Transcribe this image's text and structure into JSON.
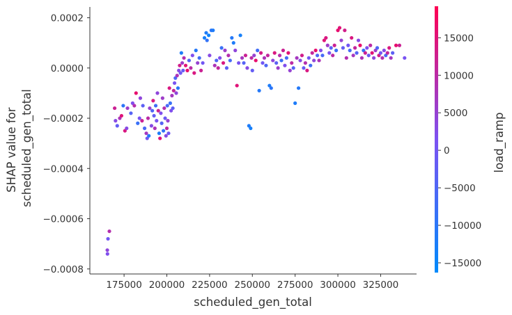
{
  "chart_data": {
    "type": "scatter",
    "xlabel": "scheduled_gen_total",
    "ylabel_lines": [
      "SHAP value for",
      "scheduled_gen_total"
    ],
    "colorbar_label": "load_ramp",
    "xlim": [
      155000,
      346000
    ],
    "ylim": [
      -0.00082,
      0.000243
    ],
    "x_ticks": [
      175000,
      200000,
      225000,
      250000,
      275000,
      300000,
      325000
    ],
    "x_tick_labels": [
      "175000",
      "200000",
      "225000",
      "250000",
      "275000",
      "300000",
      "325000"
    ],
    "y_ticks": [
      -0.0008,
      -0.0006,
      -0.0004,
      -0.0002,
      0.0,
      0.0002
    ],
    "y_tick_labels": [
      "−0.0008",
      "−0.0006",
      "−0.0004",
      "−0.0002",
      "0.0000",
      "0.0002"
    ],
    "color_range": [
      -16300,
      19200
    ],
    "color_ticks": [
      -15000,
      -10000,
      -5000,
      0,
      5000,
      10000,
      15000
    ],
    "color_tick_labels": [
      "−15000",
      "−10000",
      "−5000",
      "0",
      "5000",
      "10000",
      "15000"
    ],
    "colormap": [
      "#008afb",
      "#7c52f2",
      "#ff0052"
    ],
    "points": [
      [
        165200,
        -0.000725,
        4000
      ],
      [
        165300,
        -0.00074,
        2000
      ],
      [
        165600,
        -0.00068,
        0
      ],
      [
        166400,
        -0.00065,
        9000
      ],
      [
        169500,
        -0.00016,
        12000
      ],
      [
        170000,
        -0.00021,
        3000
      ],
      [
        171000,
        -0.00023,
        -2000
      ],
      [
        172500,
        -0.0002,
        8000
      ],
      [
        173500,
        -0.00019,
        15000
      ],
      [
        174500,
        -0.00015,
        -10000
      ],
      [
        175500,
        -0.00025,
        14000
      ],
      [
        176500,
        -0.00024,
        3000
      ],
      [
        177000,
        -0.00016,
        6000
      ],
      [
        179000,
        -0.00018,
        -4000
      ],
      [
        180000,
        -0.00014,
        2000
      ],
      [
        181000,
        -0.00015,
        9000
      ],
      [
        182000,
        -0.0001,
        16000
      ],
      [
        183000,
        -0.00022,
        -8000
      ],
      [
        184000,
        -0.0002,
        1000
      ],
      [
        184500,
        -0.00012,
        4000
      ],
      [
        185500,
        -0.00021,
        12000
      ],
      [
        186000,
        -0.00015,
        -3000
      ],
      [
        187000,
        -0.00024,
        -6000
      ],
      [
        188000,
        -0.00026,
        7000
      ],
      [
        188500,
        -0.00028,
        0
      ],
      [
        189000,
        -0.0002,
        10000
      ],
      [
        189500,
        -0.00027,
        -11000
      ],
      [
        190000,
        -0.00016,
        5000
      ],
      [
        191000,
        -0.00023,
        3000
      ],
      [
        191500,
        -0.00017,
        -5000
      ],
      [
        192000,
        -0.00013,
        14000
      ],
      [
        192500,
        -0.00019,
        -2000
      ],
      [
        193000,
        -0.00024,
        8000
      ],
      [
        193500,
        -0.00015,
        -7000
      ],
      [
        194000,
        -0.00021,
        1000
      ],
      [
        194500,
        -0.0001,
        4000
      ],
      [
        195000,
        -0.00017,
        12000
      ],
      [
        195500,
        -0.00026,
        -12000
      ],
      [
        196000,
        -0.00028,
        15000
      ],
      [
        196500,
        -0.00018,
        2000
      ],
      [
        197000,
        -0.00022,
        -4000
      ],
      [
        197500,
        -0.00012,
        6000
      ],
      [
        198000,
        -0.00025,
        -9000
      ],
      [
        198500,
        -0.00016,
        9000
      ],
      [
        199000,
        -0.0002,
        -1000
      ],
      [
        199500,
        -0.00027,
        3000
      ],
      [
        200000,
        -0.00024,
        10000
      ],
      [
        200300,
        -0.00015,
        -6000
      ],
      [
        200600,
        -0.00021,
        5000
      ],
      [
        201000,
        -0.00026,
        0
      ],
      [
        201500,
        -8e-05,
        14000
      ],
      [
        202000,
        -0.00014,
        -8000
      ],
      [
        202500,
        -0.00017,
        2000
      ],
      [
        203000,
        -0.00011,
        7000
      ],
      [
        203500,
        -0.00016,
        -3000
      ],
      [
        204000,
        -9e-05,
        11000
      ],
      [
        204500,
        -6e-05,
        1000
      ],
      [
        205000,
        -4e-05,
        -5000
      ],
      [
        205500,
        -0.0001,
        4000
      ],
      [
        206000,
        -3e-05,
        8000
      ],
      [
        206500,
        -8e-05,
        -10000
      ],
      [
        207000,
        -1e-05,
        3000
      ],
      [
        207500,
        1e-05,
        13000
      ],
      [
        208000,
        -2e-05,
        0
      ],
      [
        208500,
        6e-05,
        -12000
      ],
      [
        209000,
        2e-05,
        6000
      ],
      [
        209500,
        -1e-05,
        -2000
      ],
      [
        210000,
        4e-05,
        9000
      ],
      [
        211000,
        1e-05,
        15000
      ],
      [
        212000,
        -1e-05,
        16000
      ],
      [
        213000,
        3e-05,
        -4000
      ],
      [
        214000,
        0.0,
        10000
      ],
      [
        215000,
        5e-05,
        2000
      ],
      [
        216000,
        -2e-05,
        14000
      ],
      [
        217000,
        7e-05,
        -11000
      ],
      [
        218000,
        2e-05,
        5000
      ],
      [
        219000,
        4e-05,
        -7000
      ],
      [
        220000,
        -1e-05,
        12000
      ],
      [
        221000,
        2e-05,
        0
      ],
      [
        222000,
        0.00012,
        -13000
      ],
      [
        223000,
        0.00014,
        -12000
      ],
      [
        223500,
        0.00011,
        -9000
      ],
      [
        224500,
        0.00013,
        -14000
      ],
      [
        225000,
        5e-05,
        3000
      ],
      [
        226000,
        0.00015,
        -10000
      ],
      [
        227000,
        0.00015,
        -12000
      ],
      [
        228000,
        1e-05,
        8000
      ],
      [
        229000,
        3e-05,
        -5000
      ],
      [
        230000,
        0.0,
        11000
      ],
      [
        231000,
        4e-05,
        2000
      ],
      [
        232000,
        8e-05,
        -8000
      ],
      [
        233000,
        2e-05,
        14000
      ],
      [
        234000,
        7e-05,
        6000
      ],
      [
        235000,
        0.0,
        -3000
      ],
      [
        236000,
        5e-05,
        9000
      ],
      [
        237000,
        3e-05,
        -6000
      ],
      [
        238000,
        0.00012,
        -11000
      ],
      [
        239000,
        0.0001,
        -12000
      ],
      [
        240000,
        7e-05,
        4000
      ],
      [
        241000,
        -7e-05,
        15000
      ],
      [
        242000,
        2e-05,
        1000
      ],
      [
        243000,
        0.00013,
        -13000
      ],
      [
        244000,
        4e-05,
        7000
      ],
      [
        245000,
        2e-05,
        -4000
      ],
      [
        246000,
        5e-05,
        12000
      ],
      [
        247000,
        0.0,
        3000
      ],
      [
        248000,
        -0.00023,
        -12000
      ],
      [
        249000,
        -0.00024,
        -13000
      ],
      [
        249500,
        4e-05,
        10000
      ],
      [
        250000,
        -1e-05,
        -2000
      ],
      [
        251000,
        5e-05,
        5000
      ],
      [
        252000,
        3e-05,
        16000
      ],
      [
        253000,
        7e-05,
        -7000
      ],
      [
        254000,
        -9e-05,
        -11000
      ],
      [
        255000,
        6e-05,
        13000
      ],
      [
        256000,
        2e-05,
        0
      ],
      [
        257000,
        4e-05,
        8000
      ],
      [
        258000,
        1e-05,
        -5000
      ],
      [
        259000,
        5e-05,
        11000
      ],
      [
        260000,
        -7e-05,
        -12000
      ],
      [
        261000,
        -8e-05,
        -10000
      ],
      [
        262000,
        3e-05,
        4000
      ],
      [
        263000,
        6e-05,
        14000
      ],
      [
        264000,
        2e-05,
        -3000
      ],
      [
        265000,
        0.0,
        6000
      ],
      [
        266000,
        5e-05,
        9000
      ],
      [
        267000,
        3e-05,
        -8000
      ],
      [
        268000,
        7e-05,
        12000
      ],
      [
        269000,
        1e-05,
        2000
      ],
      [
        270000,
        4e-05,
        -6000
      ],
      [
        271000,
        6e-05,
        15000
      ],
      [
        272000,
        -1e-05,
        5000
      ],
      [
        273000,
        2e-05,
        10000
      ],
      [
        274000,
        0.0,
        -4000
      ],
      [
        275000,
        -0.00014,
        -12000
      ],
      [
        276000,
        4e-05,
        7000
      ],
      [
        277000,
        -8e-05,
        -11000
      ],
      [
        278000,
        3e-05,
        3000
      ],
      [
        279000,
        5e-05,
        13000
      ],
      [
        280000,
        0.0,
        -2000
      ],
      [
        281000,
        2e-05,
        9000
      ],
      [
        282000,
        -1e-05,
        14000
      ],
      [
        283000,
        4e-05,
        0
      ],
      [
        284000,
        1e-05,
        -7000
      ],
      [
        285000,
        6e-05,
        11000
      ],
      [
        286000,
        3e-05,
        4000
      ],
      [
        287000,
        7e-05,
        16000
      ],
      [
        288000,
        5e-05,
        -5000
      ],
      [
        289000,
        3e-05,
        8000
      ],
      [
        290000,
        7e-05,
        2000
      ],
      [
        291000,
        5e-05,
        -6000
      ],
      [
        292000,
        0.00011,
        15000
      ],
      [
        293000,
        0.00012,
        14000
      ],
      [
        294000,
        9e-05,
        6000
      ],
      [
        295000,
        6e-05,
        1000
      ],
      [
        296000,
        8e-05,
        -3000
      ],
      [
        297000,
        5e-05,
        10000
      ],
      [
        298000,
        9e-05,
        12000
      ],
      [
        299000,
        7e-05,
        -8000
      ],
      [
        300000,
        0.00015,
        16000
      ],
      [
        301000,
        0.00016,
        15000
      ],
      [
        302000,
        0.00011,
        5000
      ],
      [
        303000,
        8e-05,
        -2000
      ],
      [
        304000,
        0.00015,
        13000
      ],
      [
        305000,
        4e-05,
        9000
      ],
      [
        306000,
        9e-05,
        0
      ],
      [
        307000,
        7e-05,
        -6000
      ],
      [
        308000,
        0.00012,
        14000
      ],
      [
        309000,
        5e-05,
        7000
      ],
      [
        310000,
        8e-05,
        11000
      ],
      [
        311000,
        6e-05,
        -4000
      ],
      [
        312000,
        0.00011,
        3000
      ],
      [
        313000,
        9e-05,
        16000
      ],
      [
        314000,
        4e-05,
        8000
      ],
      [
        315000,
        7e-05,
        -9000
      ],
      [
        316000,
        6e-05,
        12000
      ],
      [
        317000,
        8e-05,
        2000
      ],
      [
        318000,
        5e-05,
        -1000
      ],
      [
        319000,
        9e-05,
        10000
      ],
      [
        320000,
        6e-05,
        15000
      ],
      [
        321000,
        4e-05,
        4000
      ],
      [
        322000,
        7e-05,
        6000
      ],
      [
        323000,
        8e-05,
        -5000
      ],
      [
        324000,
        5e-05,
        13000
      ],
      [
        325000,
        6e-05,
        0
      ],
      [
        326000,
        4e-05,
        9000
      ],
      [
        327000,
        7e-05,
        3000
      ],
      [
        328000,
        5e-05,
        -6000
      ],
      [
        329000,
        6e-05,
        11000
      ],
      [
        330000,
        8e-05,
        14000
      ],
      [
        331000,
        4e-05,
        7000
      ],
      [
        332000,
        6e-05,
        -3000
      ],
      [
        334000,
        9e-05,
        16000
      ],
      [
        336000,
        9e-05,
        12000
      ],
      [
        339000,
        4e-05,
        1000
      ]
    ]
  }
}
